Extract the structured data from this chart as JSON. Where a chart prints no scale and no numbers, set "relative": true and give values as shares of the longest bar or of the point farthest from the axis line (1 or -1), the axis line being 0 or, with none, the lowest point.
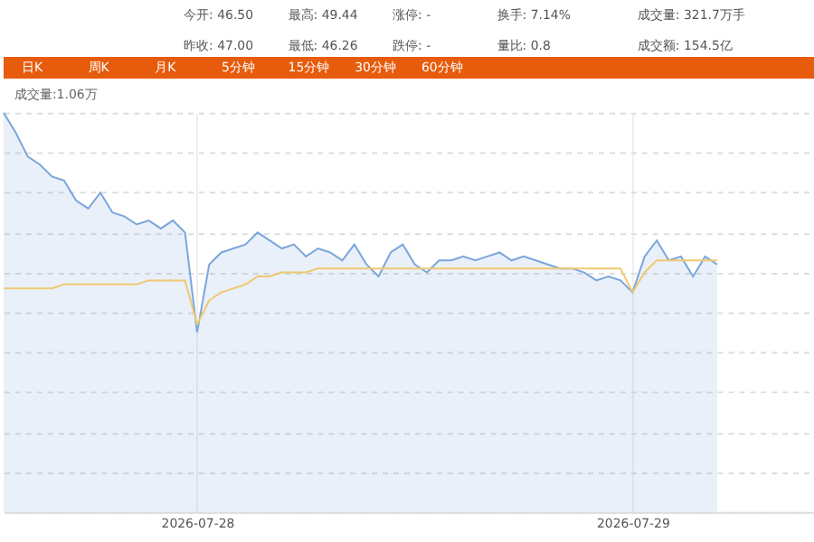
{
  "chart_data": {
    "type": "area",
    "relative": true,
    "grid": true,
    "annotations": [
      "今开: 46.50",
      "最高: 49.44",
      "涨停: -",
      "换手: 7.14%",
      "成交量: 321.7万手",
      "昨收: 47.00",
      "最低: 46.26",
      "跌停: -",
      "量比: 0.8",
      "成交额: 154.5亿",
      "日K",
      "周K",
      "月K",
      "5分钟",
      "15分钟",
      "30分钟",
      "60分钟",
      "成交量:1.06万"
    ],
    "categories": [
      null,
      null,
      null,
      null,
      null,
      null,
      null,
      null,
      null,
      null,
      null,
      null,
      null,
      null,
      null,
      null,
      "2026-07-28",
      null,
      null,
      null,
      null,
      null,
      null,
      null,
      null,
      null,
      null,
      null,
      null,
      null,
      null,
      null,
      null,
      null,
      null,
      null,
      null,
      null,
      null,
      null,
      null,
      null,
      null,
      null,
      null,
      null,
      null,
      null,
      null,
      null,
      null,
      null,
      "2026-07-29",
      null,
      null,
      null,
      null,
      null,
      null,
      null,
      null,
      null,
      null,
      null,
      null,
      null,
      null,
      null
    ],
    "series": [
      {
        "color": "#7aa6dc",
        "values": [
          1.0,
          0.95,
          0.89,
          0.87,
          0.84,
          0.83,
          0.78,
          0.76,
          0.8,
          0.75,
          0.74,
          0.72,
          0.73,
          0.71,
          0.73,
          0.7,
          0.45,
          0.62,
          0.65,
          0.66,
          0.67,
          0.7,
          0.68,
          0.66,
          0.67,
          0.64,
          0.66,
          0.65,
          0.63,
          0.67,
          0.62,
          0.59,
          0.65,
          0.67,
          0.62,
          0.6,
          0.63,
          0.63,
          0.64,
          0.63,
          0.64,
          0.65,
          0.63,
          0.64,
          0.63,
          0.62,
          0.61,
          0.61,
          0.6,
          0.58,
          0.59,
          0.58,
          0.55,
          0.64,
          0.68,
          0.63,
          0.64,
          0.59,
          0.64,
          0.62,
          null,
          null,
          null,
          null,
          null,
          null,
          null,
          null
        ]
      },
      {
        "type": "line",
        "color": "#f0c870",
        "values": [
          0.56,
          0.56,
          0.56,
          0.56,
          0.56,
          0.57,
          0.57,
          0.57,
          0.57,
          0.57,
          0.57,
          0.57,
          0.58,
          0.58,
          0.58,
          0.58,
          0.47,
          0.53,
          0.55,
          0.56,
          0.57,
          0.59,
          0.59,
          0.6,
          0.6,
          0.6,
          0.61,
          0.61,
          0.61,
          0.61,
          0.61,
          0.61,
          0.61,
          0.61,
          0.61,
          0.61,
          0.61,
          0.61,
          0.61,
          0.61,
          0.61,
          0.61,
          0.61,
          0.61,
          0.61,
          0.61,
          0.61,
          0.61,
          0.61,
          0.61,
          0.61,
          0.61,
          0.55,
          0.6,
          0.63,
          0.63,
          0.63,
          0.63,
          0.63,
          0.63,
          null,
          null,
          null,
          null,
          null,
          null,
          null,
          null
        ]
      }
    ]
  }
}
